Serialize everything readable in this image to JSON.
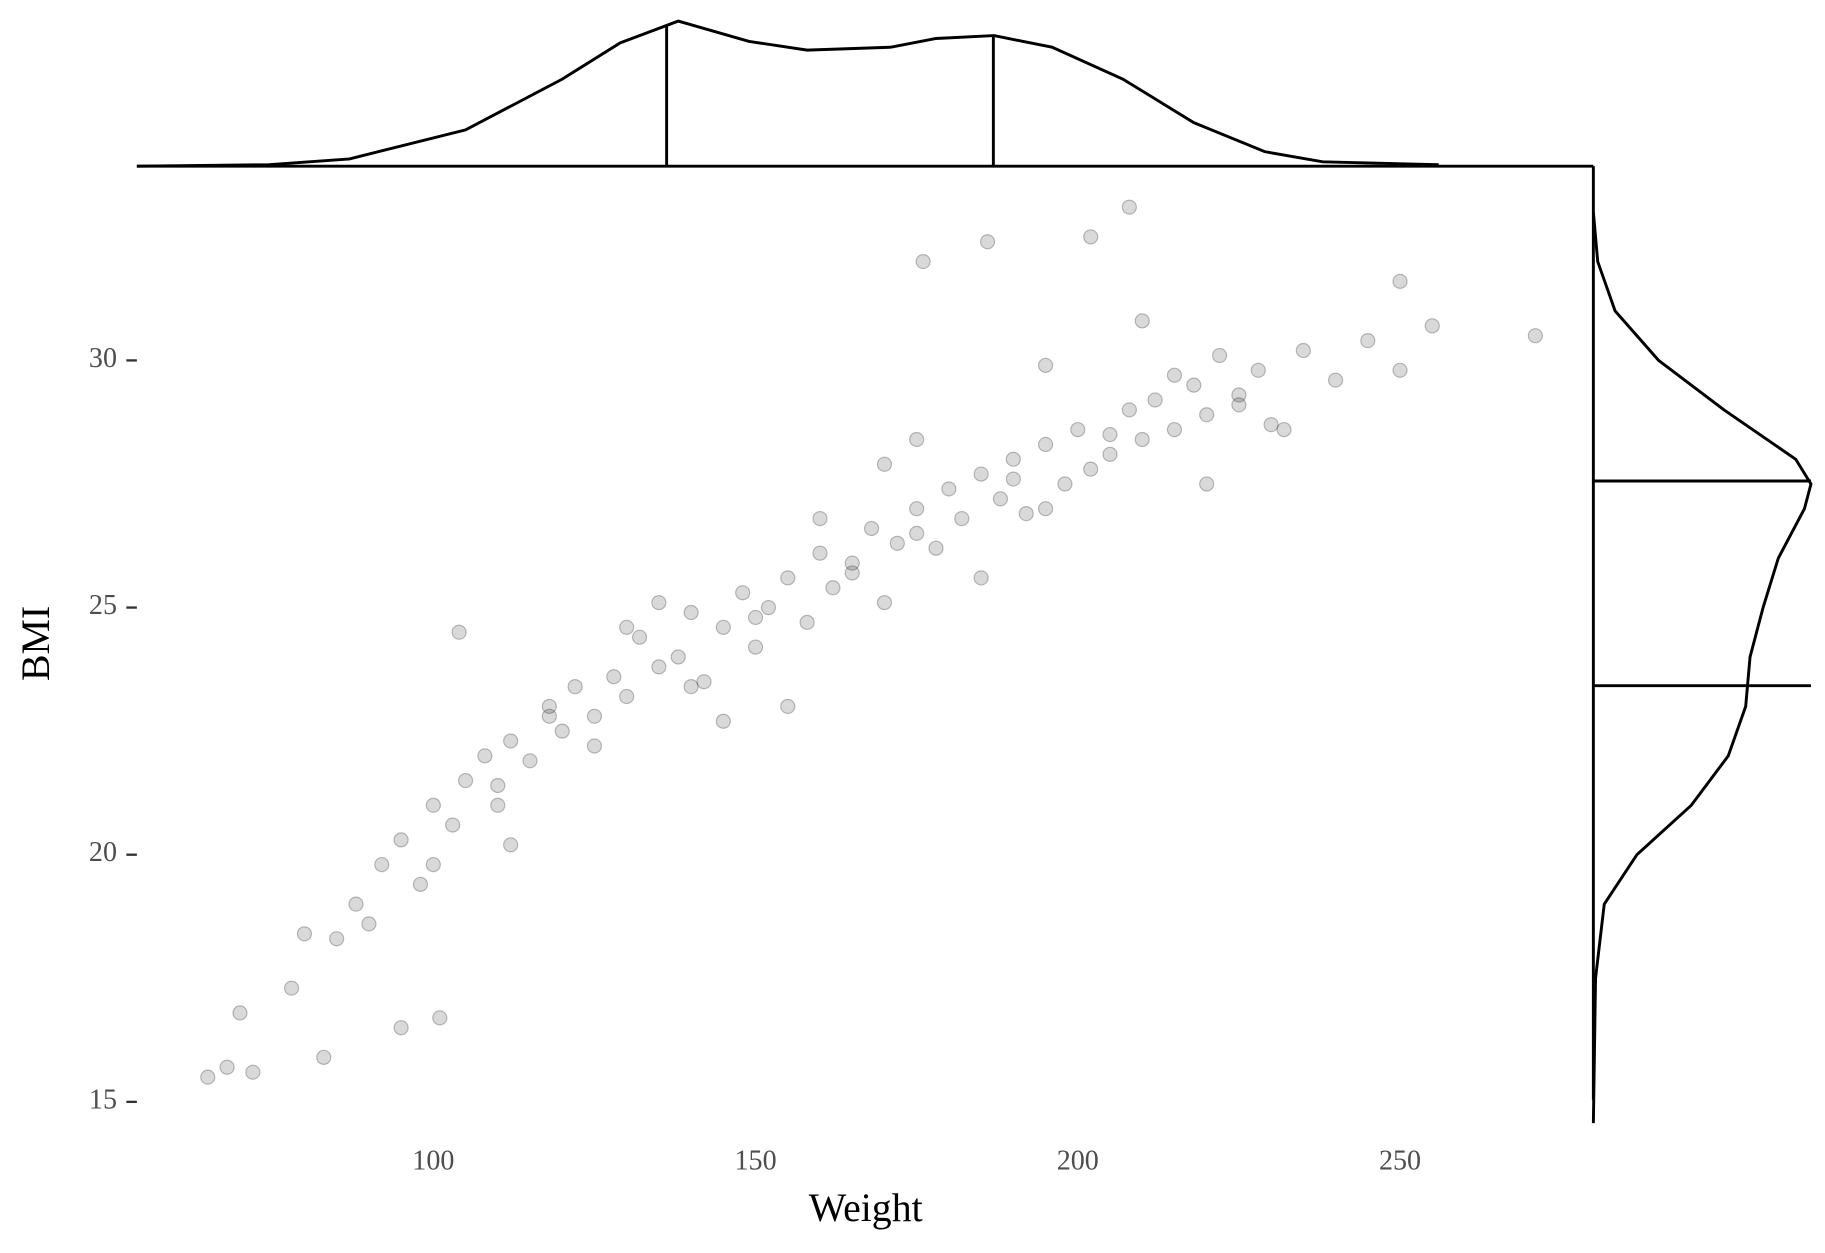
{
  "chart_data": {
    "type": "scatter",
    "xlabel": "Weight",
    "ylabel": "BMI",
    "xlim": [
      54,
      280
    ],
    "ylim": [
      14.57,
      33.93
    ],
    "xticks": [
      100,
      150,
      200,
      250
    ],
    "yticks": [
      15,
      20,
      25,
      30
    ],
    "color": "#000000",
    "x": [
      65,
      68,
      72,
      70,
      83,
      95,
      101,
      78,
      80,
      85,
      88,
      90,
      92,
      95,
      98,
      100,
      103,
      105,
      108,
      110,
      112,
      115,
      118,
      120,
      122,
      125,
      128,
      130,
      132,
      135,
      138,
      140,
      142,
      145,
      148,
      150,
      152,
      155,
      158,
      160,
      162,
      165,
      168,
      170,
      172,
      175,
      178,
      180,
      182,
      185,
      188,
      190,
      192,
      195,
      198,
      200,
      202,
      205,
      208,
      210,
      212,
      215,
      218,
      220,
      222,
      225,
      228,
      230,
      235,
      240,
      245,
      250,
      255,
      271,
      208,
      186,
      176,
      202,
      250,
      104,
      110,
      125,
      140,
      150,
      165,
      175,
      190,
      205,
      215,
      225,
      118,
      130,
      145,
      160,
      170,
      185,
      195,
      210,
      135,
      155,
      175,
      195,
      220,
      232,
      100,
      112
    ],
    "values": [
      15.5,
      15.7,
      15.6,
      16.8,
      15.9,
      16.5,
      16.7,
      17.3,
      18.4,
      18.3,
      19.0,
      18.6,
      19.8,
      20.3,
      19.4,
      21.0,
      20.6,
      21.5,
      22.0,
      21.4,
      22.3,
      21.9,
      23.0,
      22.5,
      23.4,
      22.8,
      23.6,
      23.2,
      24.4,
      23.8,
      24.0,
      24.9,
      23.5,
      24.6,
      25.3,
      24.2,
      25.0,
      25.6,
      24.7,
      26.1,
      25.4,
      25.9,
      26.6,
      25.1,
      26.3,
      27.0,
      26.2,
      27.4,
      26.8,
      27.7,
      27.2,
      28.0,
      26.9,
      28.3,
      27.5,
      28.6,
      27.8,
      28.1,
      29.0,
      28.4,
      29.2,
      28.6,
      29.5,
      28.9,
      30.1,
      29.3,
      29.8,
      28.7,
      30.2,
      29.6,
      30.4,
      29.8,
      30.7,
      30.5,
      33.1,
      32.4,
      32.0,
      32.5,
      31.6,
      24.5,
      21.0,
      22.2,
      23.4,
      24.8,
      25.7,
      26.5,
      27.6,
      28.5,
      29.7,
      29.1,
      22.8,
      24.6,
      22.7,
      26.8,
      27.9,
      25.6,
      27.0,
      30.8,
      25.1,
      23.0,
      28.4,
      29.9,
      27.5,
      28.6,
      19.8,
      20.2
    ],
    "x_density": {
      "x": [
        54,
        74.5,
        87,
        105,
        120,
        129,
        138,
        149,
        158,
        171,
        178,
        187,
        196,
        207,
        218,
        229,
        238,
        256
      ],
      "values": [
        0,
        0.01,
        0.05,
        0.25,
        0.6,
        0.85,
        1.0,
        0.86,
        0.8,
        0.82,
        0.88,
        0.9,
        0.82,
        0.6,
        0.3,
        0.1,
        0.03,
        0.01
      ],
      "quantiles": [
        136.2,
        186.9
      ]
    },
    "y_density": {
      "y": [
        14.57,
        17.5,
        19,
        20,
        21,
        22,
        23,
        24,
        25,
        26,
        27,
        27.5,
        28,
        29,
        30,
        31,
        32,
        33
      ],
      "values": [
        0,
        0.01,
        0.05,
        0.2,
        0.45,
        0.62,
        0.7,
        0.72,
        0.78,
        0.85,
        0.97,
        1.0,
        0.93,
        0.6,
        0.3,
        0.1,
        0.02,
        0
      ],
      "quantiles": [
        27.56,
        23.42
      ]
    }
  }
}
